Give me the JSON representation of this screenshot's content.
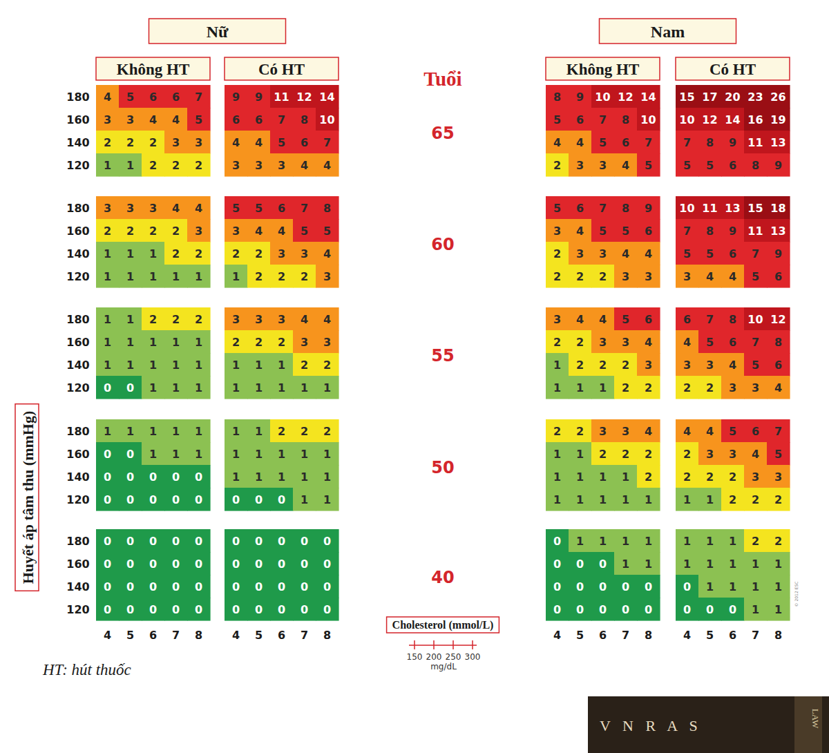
{
  "chart_data": {
    "type": "heatmap",
    "y_label": "Huyết áp tâm thu (mmHg)",
    "ages_title": "Tuổi",
    "ages": [
      65,
      60,
      55,
      50,
      40
    ],
    "sbp": [
      180,
      160,
      140,
      120
    ],
    "cholesterol": [
      4,
      5,
      6,
      7,
      8
    ],
    "cholesterol_label": "Cholesterol (mmol/L)",
    "mgdl": [
      150,
      200,
      250,
      300
    ],
    "mgdl_unit": "mg/dL",
    "footnote": "HT: hút thuốc",
    "copyright": "© 2012 ESC",
    "logo": [
      "V N R A S",
      "LAW"
    ],
    "data_labels": true,
    "sexes": [
      {
        "label": "Nữ",
        "groups": [
          {
            "label": "Không HT",
            "cells": [
              [
                [
                  4,
                  5,
                  6,
                  6,
                  7
                ],
                [
                  3,
                  3,
                  4,
                  4,
                  5
                ],
                [
                  2,
                  2,
                  2,
                  3,
                  3
                ],
                [
                  1,
                  1,
                  2,
                  2,
                  2
                ]
              ],
              [
                [
                  3,
                  3,
                  3,
                  4,
                  4
                ],
                [
                  2,
                  2,
                  2,
                  2,
                  3
                ],
                [
                  1,
                  1,
                  1,
                  2,
                  2
                ],
                [
                  1,
                  1,
                  1,
                  1,
                  1
                ]
              ],
              [
                [
                  1,
                  1,
                  2,
                  2,
                  2
                ],
                [
                  1,
                  1,
                  1,
                  1,
                  1
                ],
                [
                  1,
                  1,
                  1,
                  1,
                  1
                ],
                [
                  0,
                  0,
                  1,
                  1,
                  1
                ]
              ],
              [
                [
                  1,
                  1,
                  1,
                  1,
                  1
                ],
                [
                  0,
                  0,
                  1,
                  1,
                  1
                ],
                [
                  0,
                  0,
                  0,
                  0,
                  0
                ],
                [
                  0,
                  0,
                  0,
                  0,
                  0
                ]
              ],
              [
                [
                  0,
                  0,
                  0,
                  0,
                  0
                ],
                [
                  0,
                  0,
                  0,
                  0,
                  0
                ],
                [
                  0,
                  0,
                  0,
                  0,
                  0
                ],
                [
                  0,
                  0,
                  0,
                  0,
                  0
                ]
              ]
            ]
          },
          {
            "label": "Có HT",
            "cells": [
              [
                [
                  9,
                  9,
                  11,
                  12,
                  14
                ],
                [
                  6,
                  6,
                  7,
                  8,
                  10
                ],
                [
                  4,
                  4,
                  5,
                  6,
                  7
                ],
                [
                  3,
                  3,
                  3,
                  4,
                  4
                ]
              ],
              [
                [
                  5,
                  5,
                  6,
                  7,
                  8
                ],
                [
                  3,
                  4,
                  4,
                  5,
                  5
                ],
                [
                  2,
                  2,
                  3,
                  3,
                  4
                ],
                [
                  1,
                  2,
                  2,
                  2,
                  3
                ]
              ],
              [
                [
                  3,
                  3,
                  3,
                  4,
                  4
                ],
                [
                  2,
                  2,
                  2,
                  3,
                  3
                ],
                [
                  1,
                  1,
                  1,
                  2,
                  2
                ],
                [
                  1,
                  1,
                  1,
                  1,
                  1
                ]
              ],
              [
                [
                  1,
                  1,
                  2,
                  2,
                  2
                ],
                [
                  1,
                  1,
                  1,
                  1,
                  1
                ],
                [
                  1,
                  1,
                  1,
                  1,
                  1
                ],
                [
                  0,
                  0,
                  0,
                  1,
                  1
                ]
              ],
              [
                [
                  0,
                  0,
                  0,
                  0,
                  0
                ],
                [
                  0,
                  0,
                  0,
                  0,
                  0
                ],
                [
                  0,
                  0,
                  0,
                  0,
                  0
                ],
                [
                  0,
                  0,
                  0,
                  0,
                  0
                ]
              ]
            ]
          }
        ]
      },
      {
        "label": "Nam",
        "groups": [
          {
            "label": "Không HT",
            "cells": [
              [
                [
                  8,
                  9,
                  10,
                  12,
                  14
                ],
                [
                  5,
                  6,
                  7,
                  8,
                  10
                ],
                [
                  4,
                  4,
                  5,
                  6,
                  7
                ],
                [
                  2,
                  3,
                  3,
                  4,
                  5
                ]
              ],
              [
                [
                  5,
                  6,
                  7,
                  8,
                  9
                ],
                [
                  3,
                  4,
                  5,
                  5,
                  6
                ],
                [
                  2,
                  3,
                  3,
                  4,
                  4
                ],
                [
                  2,
                  2,
                  2,
                  3,
                  3
                ]
              ],
              [
                [
                  3,
                  4,
                  4,
                  5,
                  6
                ],
                [
                  2,
                  2,
                  3,
                  3,
                  4
                ],
                [
                  1,
                  2,
                  2,
                  2,
                  3
                ],
                [
                  1,
                  1,
                  1,
                  2,
                  2
                ]
              ],
              [
                [
                  2,
                  2,
                  3,
                  3,
                  4
                ],
                [
                  1,
                  1,
                  2,
                  2,
                  2
                ],
                [
                  1,
                  1,
                  1,
                  1,
                  2
                ],
                [
                  1,
                  1,
                  1,
                  1,
                  1
                ]
              ],
              [
                [
                  0,
                  1,
                  1,
                  1,
                  1
                ],
                [
                  0,
                  0,
                  0,
                  1,
                  1
                ],
                [
                  0,
                  0,
                  0,
                  0,
                  0
                ],
                [
                  0,
                  0,
                  0,
                  0,
                  0
                ]
              ]
            ]
          },
          {
            "label": "Có HT",
            "cells": [
              [
                [
                  15,
                  17,
                  20,
                  23,
                  26
                ],
                [
                  10,
                  12,
                  14,
                  16,
                  19
                ],
                [
                  7,
                  8,
                  9,
                  11,
                  13
                ],
                [
                  5,
                  5,
                  6,
                  8,
                  9
                ]
              ],
              [
                [
                  10,
                  11,
                  13,
                  15,
                  18
                ],
                [
                  7,
                  8,
                  9,
                  11,
                  13
                ],
                [
                  5,
                  5,
                  6,
                  7,
                  9
                ],
                [
                  3,
                  4,
                  4,
                  5,
                  6
                ]
              ],
              [
                [
                  6,
                  7,
                  8,
                  10,
                  12
                ],
                [
                  4,
                  5,
                  6,
                  7,
                  8
                ],
                [
                  3,
                  3,
                  4,
                  5,
                  6
                ],
                [
                  2,
                  2,
                  3,
                  3,
                  4
                ]
              ],
              [
                [
                  4,
                  4,
                  5,
                  6,
                  7
                ],
                [
                  2,
                  3,
                  3,
                  4,
                  5
                ],
                [
                  2,
                  2,
                  2,
                  3,
                  3
                ],
                [
                  1,
                  1,
                  2,
                  2,
                  2
                ]
              ],
              [
                [
                  1,
                  1,
                  1,
                  2,
                  2
                ],
                [
                  1,
                  1,
                  1,
                  1,
                  1
                ],
                [
                  0,
                  1,
                  1,
                  1,
                  1
                ],
                [
                  0,
                  0,
                  0,
                  1,
                  1
                ]
              ]
            ]
          }
        ]
      }
    ]
  }
}
